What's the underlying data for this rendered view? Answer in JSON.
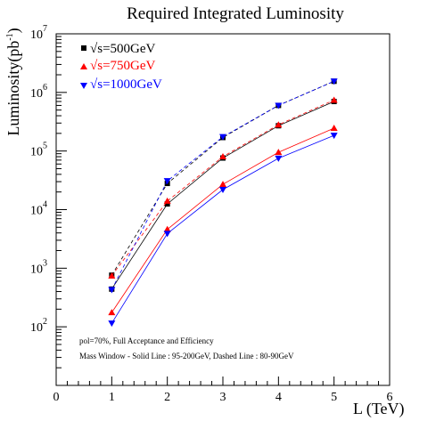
{
  "chart_data": {
    "type": "line",
    "title": "Required Integrated Luminosity",
    "xlabel": "L (TeV)",
    "ylabel": "Luminosity(pb",
    "ylabel_exp": "-1",
    "ylabel_close": ")",
    "xlim": [
      0,
      6
    ],
    "ylim": [
      10,
      10000000
    ],
    "yscale": "log",
    "x_ticks": [
      "0",
      "1",
      "2",
      "3",
      "4",
      "5",
      "6"
    ],
    "y_ticks": [
      {
        "base": "10",
        "exp": "2",
        "value": 100
      },
      {
        "base": "10",
        "exp": "3",
        "value": 1000
      },
      {
        "base": "10",
        "exp": "4",
        "value": 10000
      },
      {
        "base": "10",
        "exp": "5",
        "value": 100000
      },
      {
        "base": "10",
        "exp": "6",
        "value": 1000000
      },
      {
        "base": "10",
        "exp": "7",
        "value": 10000000
      }
    ],
    "x": [
      1,
      2,
      3,
      4,
      5
    ],
    "series": [
      {
        "name": "√s=500GeV",
        "color": "#000000",
        "marker": "square",
        "line": "solid",
        "values": [
          440,
          12500,
          76000,
          270000,
          700000
        ]
      },
      {
        "name": "√s=500GeV",
        "color": "#000000",
        "marker": "square",
        "line": "dashed",
        "values": [
          760,
          28000,
          170000,
          600000,
          1550000
        ]
      },
      {
        "name": "√s=750GeV",
        "color": "#ff0000",
        "marker": "triangle-up",
        "line": "solid",
        "values": [
          175,
          4600,
          27000,
          95000,
          245000
        ]
      },
      {
        "name": "√s=750GeV",
        "color": "#ff0000",
        "marker": "triangle-up",
        "line": "dashed",
        "values": [
          740,
          14000,
          80000,
          280000,
          740000
        ]
      },
      {
        "name": "√s=1000GeV",
        "color": "#0000ff",
        "marker": "triangle-down",
        "line": "solid",
        "values": [
          115,
          3900,
          22000,
          75000,
          185000
        ]
      },
      {
        "name": "√s=1000GeV",
        "color": "#0000ff",
        "marker": "triangle-down",
        "line": "dashed",
        "values": [
          430,
          31000,
          175000,
          600000,
          1550000
        ]
      }
    ],
    "legend": {
      "placement": "top-left",
      "entries": [
        {
          "label": "√s=500GeV",
          "color": "#000000",
          "marker": "square"
        },
        {
          "label": "√s=750GeV",
          "color": "#ff0000",
          "marker": "triangle-up"
        },
        {
          "label": "√s=1000GeV",
          "color": "#0000ff",
          "marker": "triangle-down"
        }
      ]
    },
    "annotations": [
      "pol=70%, Full Acceptance and Efficiency",
      "Mass Window - Solid Line : 95-200GeV, Dashed Line : 80-90GeV"
    ],
    "grid": false
  }
}
